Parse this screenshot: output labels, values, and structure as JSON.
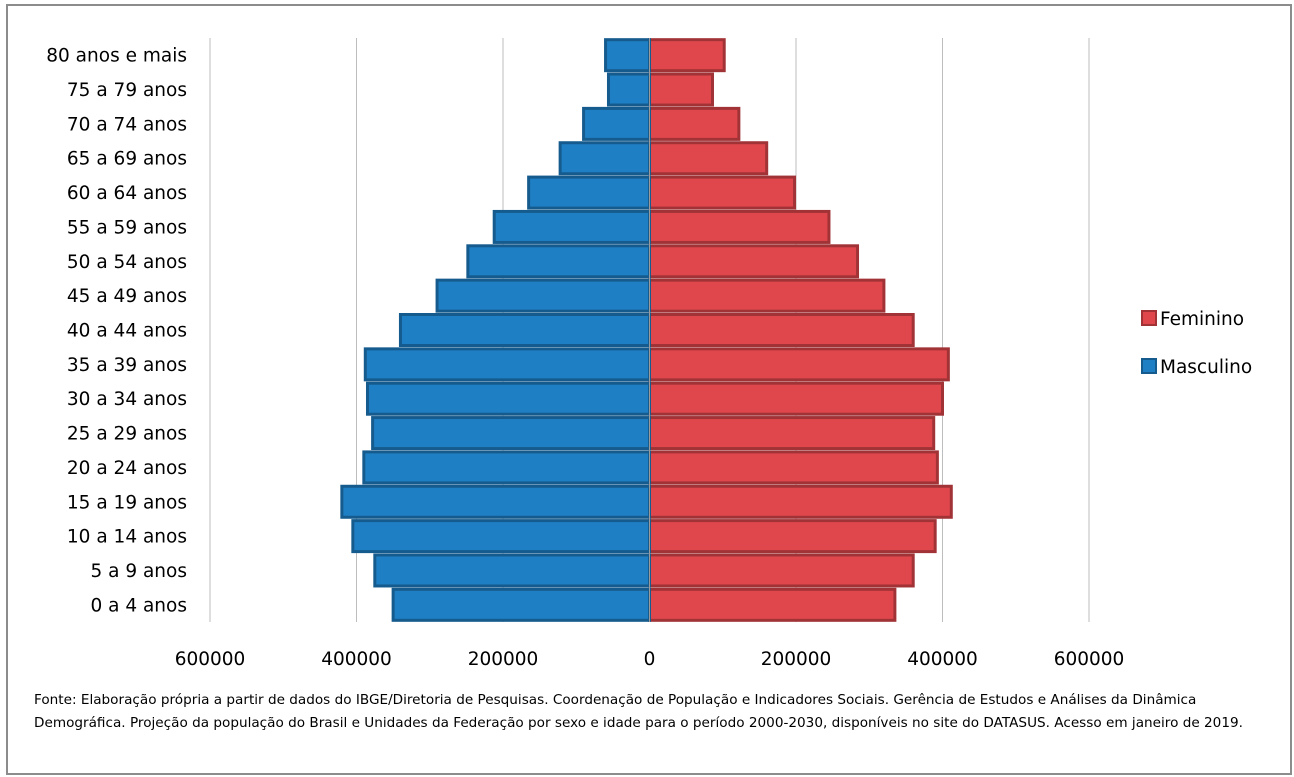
{
  "chart_data": {
    "type": "bar",
    "orientation": "horizontal",
    "categories": [
      "0 a 4 anos",
      "5 a 9 anos",
      "10 a 14 anos",
      "15 a 19 anos",
      "20 a 24 anos",
      "25 a 29 anos",
      "30 a 34 anos",
      "35 a 39 anos",
      "40 a 44 anos",
      "45 a 49 anos",
      "50 a 54 anos",
      "55 a 59 anos",
      "60 a 64 anos",
      "65 a 69 anos",
      "70 a 74 anos",
      "75 a 79 anos",
      "80 anos e mais"
    ],
    "series": [
      {
        "name": "Feminino",
        "color": "#e0474c",
        "values": [
          335000,
          360000,
          390000,
          412000,
          393000,
          388000,
          400000,
          408000,
          360000,
          320000,
          284000,
          245000,
          198000,
          160000,
          122000,
          86000,
          102000
        ]
      },
      {
        "name": "Masculino",
        "color": "#1f7fc4",
        "values": [
          -350000,
          -375000,
          -405000,
          -420000,
          -390000,
          -378000,
          -385000,
          -388000,
          -340000,
          -290000,
          -248000,
          -212000,
          -165000,
          -122000,
          -90000,
          -56000,
          -60000
        ]
      }
    ],
    "xlim": [
      -600000,
      600000
    ],
    "xticks": [
      -600000,
      -400000,
      -200000,
      0,
      200000,
      400000,
      600000
    ],
    "xtick_labels": [
      "600000",
      "400000",
      "200000",
      "0",
      "200000",
      "400000",
      "600000"
    ],
    "grid": "vertical",
    "legend": {
      "position": "right",
      "entries": [
        "Feminino",
        "Masculino"
      ]
    }
  },
  "source_note": "Fonte:  Elaboração própria a partir de dados  do  IBGE/Diretoria de Pesquisas. Coordenação de População e Indicadores Sociais. Gerência de Estudos e Análises da Dinâmica Demográfica. Projeção da população do Brasil e Unidades da Federação por sexo e idade para o período 2000-2030, disponíveis no site do DATASUS. Acesso em  janeiro de 2019."
}
